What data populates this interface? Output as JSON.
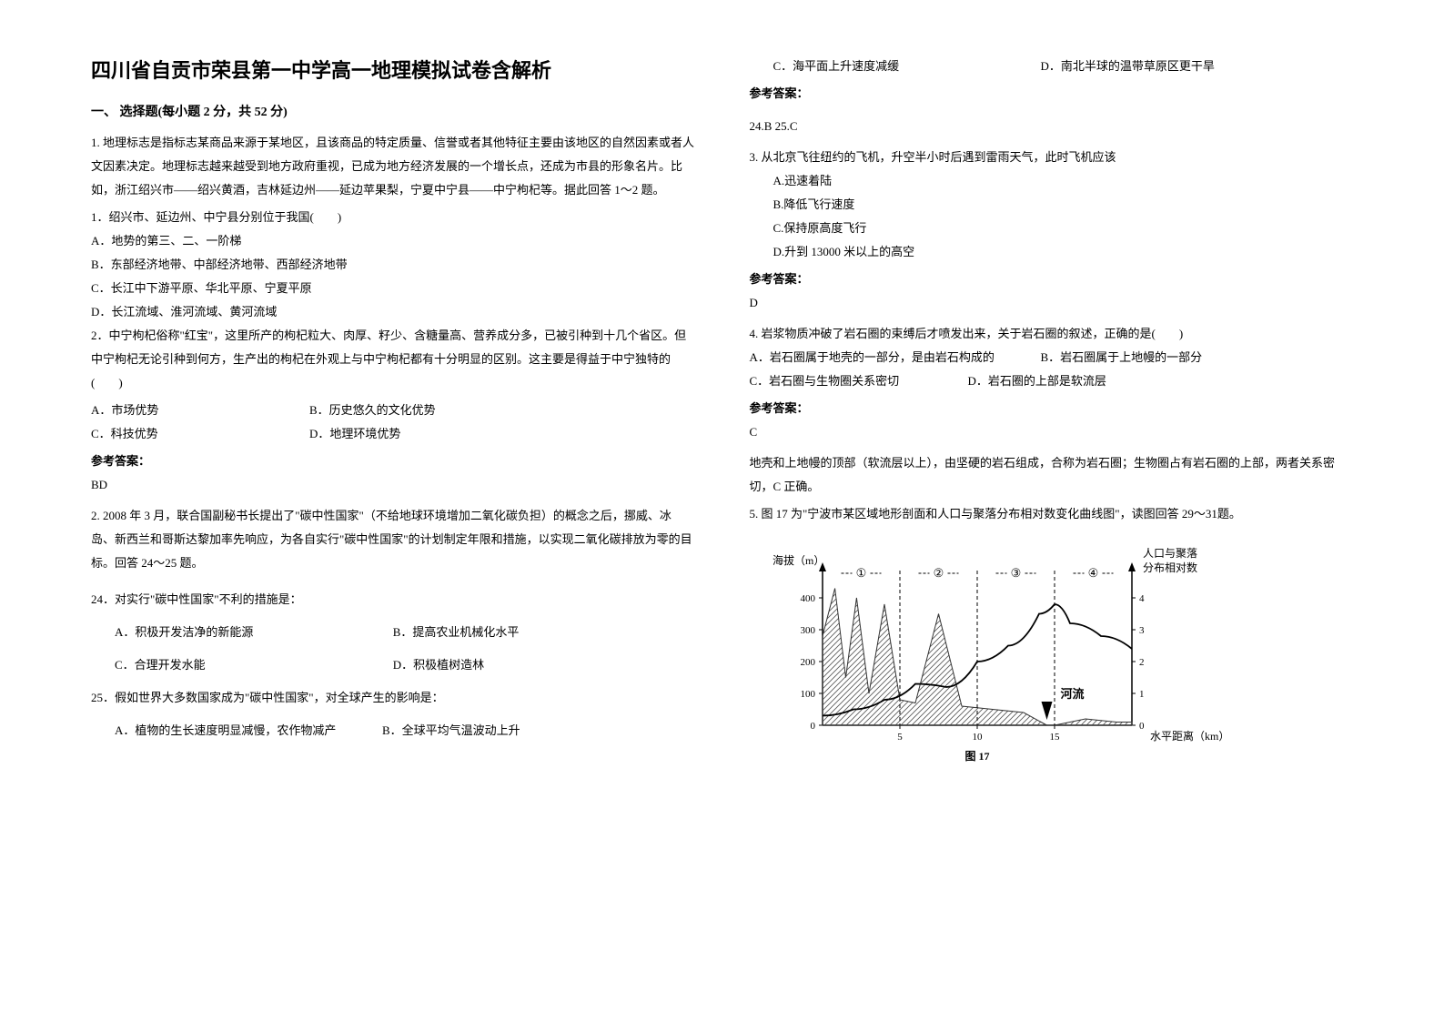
{
  "title": "四川省自贡市荣县第一中学高一地理模拟试卷含解析",
  "section1_header": "一、 选择题(每小题 2 分，共 52 分)",
  "q1": {
    "intro": "1. 地理标志是指标志某商品来源于某地区，且该商品的特定质量、信誉或者其他特征主要由该地区的自然因素或者人文因素决定。地理标志越来越受到地方政府重视，已成为地方经济发展的一个增长点，还成为市县的形象名片。比如，浙江绍兴市——绍兴黄酒，吉林延边州——延边苹果梨，宁夏中宁县——中宁枸杞等。据此回答 1～2 题。",
    "sub1": "1．绍兴市、延边州、中宁县分别位于我国(　　)",
    "sub1_options": {
      "a": "A．地势的第三、二、一阶梯",
      "b": "B．东部经济地带、中部经济地带、西部经济地带",
      "c": "C．长江中下游平原、华北平原、宁夏平原",
      "d": "D．长江流域、淮河流域、黄河流域"
    },
    "sub2": "2．中宁枸杞俗称\"红宝\"，这里所产的枸杞粒大、肉厚、籽少、含糖量高、营养成分多，已被引种到十几个省区。但中宁枸杞无论引种到何方，生产出的枸杞在外观上与中宁枸杞都有十分明显的区别。这主要是得益于中宁独特的(　　)",
    "sub2_options": {
      "a": "A．市场优势",
      "b": "B．历史悠久的文化优势",
      "c": "C．科技优势",
      "d": "D．地理环境优势"
    },
    "answer_label": "参考答案：",
    "answer": "BD"
  },
  "q2": {
    "intro": "2. 2008 年 3 月，联合国副秘书长提出了\"碳中性国家\"（不给地球环境增加二氧化碳负担）的概念之后，挪威、冰岛、新西兰和哥斯达黎加率先响应，为各自实行\"碳中性国家\"的计划制定年限和措施，以实现二氧化碳排放为零的目标。回答 24～25 题。",
    "sub24": "24．对实行\"碳中性国家\"不利的措施是：",
    "sub24_options": {
      "a": "A．积极开发洁净的新能源",
      "b": "B．提高农业机械化水平",
      "c": "C．合理开发水能",
      "d": "D．积极植树造林"
    },
    "sub25": "25．假如世界大多数国家成为\"碳中性国家\"，对全球产生的影响是：",
    "sub25_options": {
      "a": "A．植物的生长速度明显减慢，农作物减产",
      "b": "B．全球平均气温波动上升",
      "c": "C．海平面上升速度减缓",
      "d": "D．南北半球的温带草原区更干旱"
    },
    "answer_label": "参考答案：",
    "answer": "24.B   25.C"
  },
  "q3": {
    "text": "3. 从北京飞往纽约的飞机，升空半小时后遇到雷雨天气，此时飞机应该",
    "options": {
      "a": "A.迅速着陆",
      "b": "B.降低飞行速度",
      "c": "C.保持原高度飞行",
      "d": "D.升到 13000 米以上的高空"
    },
    "answer_label": "参考答案：",
    "answer": "D"
  },
  "q4": {
    "text": "4. 岩浆物质冲破了岩石圈的束缚后才喷发出来，关于岩石圈的叙述，正确的是(　　)",
    "options": {
      "a": "A．岩石圈属于地壳的一部分，是由岩石构成的",
      "b": "B．岩石圈属于上地幔的一部分",
      "c": "C．岩石圈与生物圈关系密切",
      "d": "D．岩石圈的上部是软流层"
    },
    "answer_label": "参考答案：",
    "answer": "C",
    "explanation": "地壳和上地幔的顶部（软流层以上），由坚硬的岩石组成，合称为岩石圈；生物圈占有岩石圈的上部，两者关系密切，C 正确。"
  },
  "q5": {
    "text": "5. 图 17 为\"宁波市某区域地形剖面和人口与聚落分布相对数变化曲线图\"，读图回答 29～31题。"
  },
  "chart": {
    "type": "line_with_area",
    "y_left_label": "海拔（m）",
    "y_right_label": "人口与聚落分布相对数",
    "x_label": "水平距离（km）",
    "figure_label": "图 17",
    "river_label": "河流",
    "y_left_ticks": [
      0,
      100,
      200,
      300,
      400
    ],
    "y_right_ticks": [
      0,
      1,
      2,
      3,
      4
    ],
    "x_ticks": [
      5,
      10,
      15
    ],
    "region_labels": [
      "①",
      "②",
      "③",
      "④"
    ],
    "colors": {
      "axis": "#000000",
      "terrain_fill": "#888888",
      "curve": "#000000",
      "dashed": "#000000",
      "background": "#ffffff"
    },
    "terrain_points": [
      [
        0,
        280
      ],
      [
        8,
        430
      ],
      [
        15,
        150
      ],
      [
        22,
        400
      ],
      [
        30,
        100
      ],
      [
        40,
        380
      ],
      [
        50,
        80
      ],
      [
        60,
        70
      ],
      [
        75,
        350
      ],
      [
        90,
        60
      ],
      [
        110,
        50
      ],
      [
        130,
        40
      ],
      [
        145,
        0
      ],
      [
        150,
        0
      ],
      [
        170,
        20
      ],
      [
        190,
        10
      ],
      [
        200,
        10
      ]
    ],
    "curve_points": [
      [
        0,
        0.3
      ],
      [
        20,
        0.5
      ],
      [
        40,
        0.8
      ],
      [
        60,
        1.3
      ],
      [
        80,
        1.2
      ],
      [
        100,
        2.0
      ],
      [
        120,
        2.5
      ],
      [
        140,
        3.5
      ],
      [
        150,
        3.8
      ],
      [
        160,
        3.2
      ],
      [
        180,
        2.8
      ],
      [
        200,
        2.4
      ]
    ],
    "region_dividers_x": [
      50,
      100,
      150
    ],
    "river_x": 145,
    "label_fontsize": 12,
    "tick_fontsize": 11
  }
}
